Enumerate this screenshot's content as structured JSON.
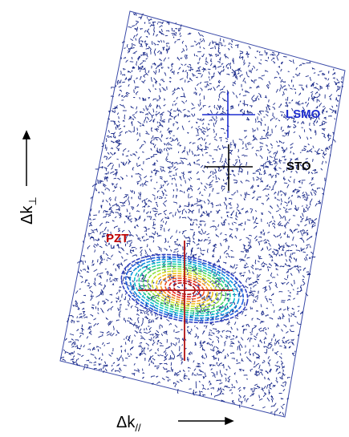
{
  "peaks": [
    {
      "label": "LSMO",
      "color": "#1f2fd0"
    },
    {
      "label": "STO",
      "color": "#000000"
    },
    {
      "label": "PZT",
      "color": "#c00000"
    }
  ],
  "axes": {
    "vertical": {
      "base": "Δk",
      "sub": "⊥"
    },
    "horizontal": {
      "base": "Δk",
      "sub": "//"
    }
  }
}
